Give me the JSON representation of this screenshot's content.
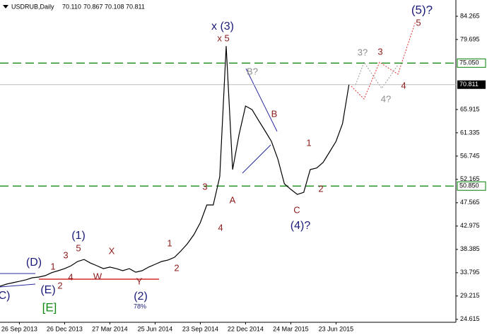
{
  "chart_data": {
    "type": "line",
    "title": "USDRUB,Daily",
    "ohlc_text": [
      "70.110",
      "70.867",
      "70.108",
      "70.811"
    ],
    "categories": [
      null,
      null,
      null,
      "26 Sep 2013",
      null,
      null,
      null,
      null,
      null,
      null,
      "26 Dec 2013",
      null,
      null,
      null,
      null,
      null,
      null,
      "27 Mar 2014",
      null,
      null,
      null,
      null,
      null,
      null,
      "25 Jun 2014",
      null,
      null,
      null,
      null,
      null,
      null,
      "23 Sep 2014",
      null,
      null,
      null,
      null,
      null,
      null,
      "22 Dec 2014",
      null,
      null,
      null,
      null,
      null,
      null,
      "24 Mar 2015",
      null,
      null,
      null,
      null,
      null,
      null,
      "23 Jun 2015",
      null,
      null
    ],
    "series": [
      {
        "name": "USDRUB",
        "color": "#000000",
        "values": [
          31.13,
          31.55,
          31.83,
          32.1,
          32.4,
          32.8,
          32.94,
          33.22,
          33.8,
          34.2,
          34.6,
          35.17,
          36.0,
          36.4,
          35.7,
          35.17,
          34.6,
          34.9,
          34.6,
          34.2,
          34.6,
          33.9,
          34.2,
          34.9,
          35.45,
          36.0,
          36.3,
          36.84,
          38.09,
          39.5,
          41.29,
          43.65,
          47.13,
          47.13,
          52.7,
          78.4,
          54.1,
          61.04,
          66.6,
          65.9,
          63.8,
          61.73,
          59.65,
          56.17,
          51.3,
          50.2,
          49.2,
          49.6,
          54.1,
          54.4,
          55.5,
          57.56,
          59.65,
          63.13,
          70.811
        ]
      }
    ],
    "ylim": [
      24.04,
      87.19
    ],
    "yticks": [
      84.265,
      79.695,
      65.915,
      61.335,
      56.745,
      52.165,
      47.565,
      42.975,
      38.385,
      33.795,
      29.215,
      24.615
    ],
    "levels": [
      {
        "value": 75.05,
        "label": "75.050",
        "color": "#008000"
      },
      {
        "value": 50.85,
        "label": "50.850",
        "color": "#008000"
      }
    ],
    "current_price": 70.811,
    "annotations": [
      {
        "text": "x (3)",
        "color": "#1a1a7a"
      },
      {
        "text": "x 5",
        "color": "#8b1a1a"
      },
      {
        "text": "B?",
        "color": "#8c8c8c"
      },
      {
        "text": "B",
        "color": "#8b1a1a"
      },
      {
        "text": "1",
        "color": "#8b1a1a"
      },
      {
        "text": "2",
        "color": "#8b1a1a"
      },
      {
        "text": "C",
        "color": "#8b1a1a"
      },
      {
        "text": "(4)?",
        "color": "#1a1a7a"
      },
      {
        "text": "A",
        "color": "#8b1a1a"
      },
      {
        "text": "3",
        "color": "#8b1a1a"
      },
      {
        "text": "4",
        "color": "#8b1a1a"
      },
      {
        "text": "1",
        "color": "#8b1a1a"
      },
      {
        "text": "2",
        "color": "#8b1a1a"
      },
      {
        "text": "(1)",
        "color": "#1a1a7a"
      },
      {
        "text": "5",
        "color": "#8b1a1a"
      },
      {
        "text": "3",
        "color": "#8b1a1a"
      },
      {
        "text": "1",
        "color": "#8b1a1a"
      },
      {
        "text": "X",
        "color": "#8b1a1a"
      },
      {
        "text": "W",
        "color": "#8b1a1a"
      },
      {
        "text": "Y",
        "color": "#8b1a1a"
      },
      {
        "text": "(2)",
        "color": "#1a1a7a"
      },
      {
        "text": "78%",
        "color": "#1a1a7a"
      },
      {
        "text": "4",
        "color": "#8b1a1a"
      },
      {
        "text": "2",
        "color": "#8b1a1a"
      },
      {
        "text": "(D)",
        "color": "#1a1a7a"
      },
      {
        "text": "(E)",
        "color": "#1a1a7a"
      },
      {
        "text": "[E]",
        "color": "#138a13"
      },
      {
        "text": "C)",
        "color": "#1a1a7a"
      },
      {
        "text": "(5)?",
        "color": "#1a1a7a"
      },
      {
        "text": "5",
        "color": "#8b1a1a"
      },
      {
        "text": "3?",
        "color": "#8c8c8c"
      },
      {
        "text": "3",
        "color": "#8b1a1a"
      },
      {
        "text": "4?",
        "color": "#8c8c8c"
      },
      {
        "text": "4",
        "color": "#8b1a1a"
      }
    ]
  }
}
